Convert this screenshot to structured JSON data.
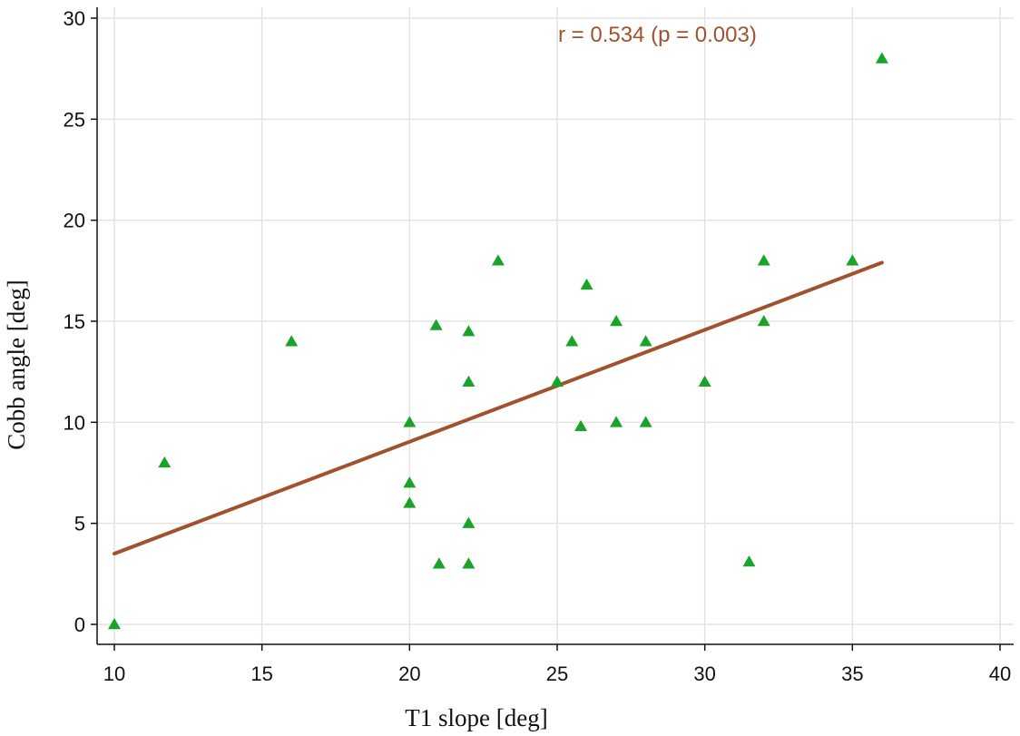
{
  "chart_data": {
    "type": "scatter",
    "xlabel": "T1 slope [deg]",
    "ylabel": "Cobb angle [deg]",
    "xlim": [
      10,
      40
    ],
    "ylim": [
      0,
      30
    ],
    "xticks": [
      10,
      15,
      20,
      25,
      30,
      35,
      40
    ],
    "yticks": [
      0,
      5,
      10,
      15,
      20,
      25,
      30
    ],
    "grid": true,
    "annotation": "r = 0.534 (p = 0.003)",
    "series": [
      {
        "marker": "triangle",
        "color": "#1aa329",
        "points": [
          [
            10,
            0
          ],
          [
            11.7,
            8
          ],
          [
            16,
            14
          ],
          [
            20,
            10
          ],
          [
            20,
            7
          ],
          [
            20,
            6
          ],
          [
            20.9,
            14.8
          ],
          [
            21,
            3
          ],
          [
            22,
            14.5
          ],
          [
            22,
            12
          ],
          [
            22,
            5
          ],
          [
            22,
            3
          ],
          [
            23,
            18
          ],
          [
            25,
            12
          ],
          [
            25.5,
            14
          ],
          [
            25.8,
            9.8
          ],
          [
            26,
            16.8
          ],
          [
            27,
            15
          ],
          [
            27,
            10
          ],
          [
            28,
            14
          ],
          [
            28,
            10
          ],
          [
            30,
            12
          ],
          [
            31.5,
            3.1
          ],
          [
            32,
            18
          ],
          [
            32,
            15
          ],
          [
            35,
            18
          ],
          [
            36,
            28
          ]
        ]
      }
    ],
    "fit_line": {
      "color": "#a0522d",
      "points": [
        [
          10,
          3.5
        ],
        [
          36,
          17.9
        ]
      ]
    }
  }
}
